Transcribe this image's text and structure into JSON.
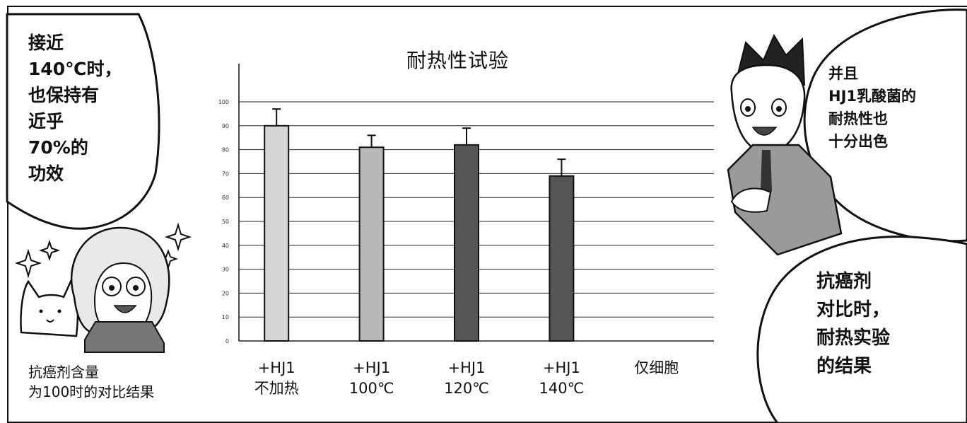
{
  "bubbles": {
    "left": "接近\n140℃时，\n也保持有\n近乎\n70%的\n功效",
    "right_top": "并且\nHJ1乳酸菌的\n耐热性也\n十分出色",
    "right_bottom": "抗癌剂\n对比时，\n耐热实验\n的结果"
  },
  "caption": "抗癌剂含量\n为100时的对比结果",
  "chart_data": {
    "type": "bar",
    "title": "耐热性试验",
    "categories": [
      "+HJ1\n不加热",
      "+HJ1\n100℃",
      "+HJ1\n120℃",
      "+HJ1\n140℃",
      "仅细胞"
    ],
    "values": [
      90,
      81,
      82,
      69,
      null
    ],
    "errors": [
      7,
      5,
      7,
      7,
      null
    ],
    "bar_colors": [
      "#d6d6d6",
      "#b8b8b8",
      "#555555",
      "#555555",
      null
    ],
    "yticks": [
      "0",
      "10",
      "20",
      "30",
      "40",
      "50",
      "60",
      "70",
      "80",
      "90",
      "100"
    ],
    "ylim": [
      0,
      100
    ],
    "grid": true
  }
}
